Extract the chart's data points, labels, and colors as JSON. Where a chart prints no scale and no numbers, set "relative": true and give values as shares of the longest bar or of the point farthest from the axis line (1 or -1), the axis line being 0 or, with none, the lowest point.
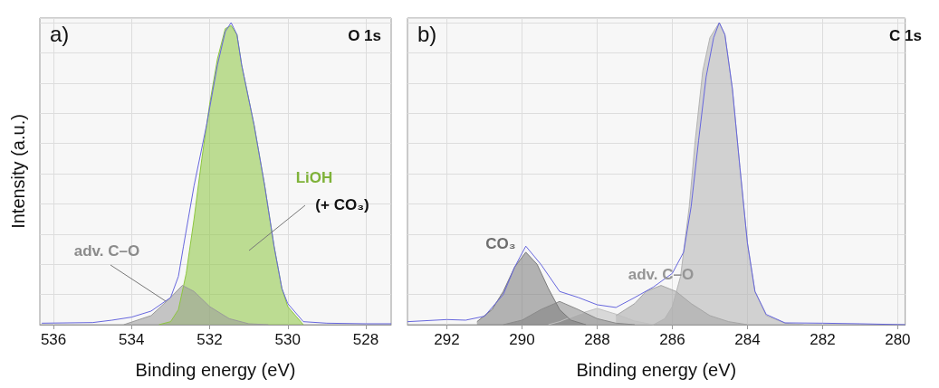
{
  "chart_data": [
    {
      "type": "area",
      "title": "a)",
      "subtitle": "O 1s",
      "xlabel": "Binding energy (eV)",
      "ylabel": "Intensity (a.u.)",
      "relative": true,
      "grid": true,
      "xlim": [
        536.35,
        527.35
      ],
      "xticks": [
        536,
        534,
        532,
        530,
        528
      ],
      "annotations": [
        "(+ CO₃)"
      ],
      "series": [
        {
          "name": "LiOH",
          "color": "#8dc63f",
          "x": [
            533.3,
            533,
            532.8,
            532.6,
            532.4,
            532.2,
            532,
            531.8,
            531.6,
            531.45,
            531.3,
            531.18,
            530.86,
            530.59,
            530.35,
            530.15,
            530,
            529.6
          ],
          "values": [
            0,
            0.01,
            0.05,
            0.17,
            0.35,
            0.55,
            0.73,
            0.88,
            0.98,
            0.99,
            0.96,
            0.86,
            0.66,
            0.46,
            0.26,
            0.12,
            0.06,
            0
          ]
        },
        {
          "name": "adv. C–O",
          "color": "#9a9a9a",
          "x": [
            534.2,
            533.5,
            533,
            532.7,
            532.4,
            532,
            531.5,
            531,
            530.5
          ],
          "values": [
            0,
            0.03,
            0.09,
            0.13,
            0.11,
            0.06,
            0.02,
            0.003,
            0
          ]
        },
        {
          "type": "line",
          "color": "#6666dd",
          "x": [
            536.3,
            535,
            534.5,
            534,
            533.5,
            533,
            532.8,
            532.67,
            532.4,
            532.08,
            531.8,
            531.6,
            531.45,
            531.3,
            531.18,
            530.86,
            530.59,
            530.35,
            530.15,
            530,
            529.6,
            529,
            528,
            527.35
          ],
          "values": [
            0.005,
            0.007,
            0.015,
            0.025,
            0.045,
            0.09,
            0.16,
            0.26,
            0.46,
            0.66,
            0.86,
            0.97,
            1,
            0.96,
            0.86,
            0.66,
            0.46,
            0.26,
            0.12,
            0.07,
            0.01,
            0.005,
            0.003,
            0.003
          ]
        }
      ]
    },
    {
      "type": "area",
      "title": "b)",
      "subtitle": "C 1s",
      "xlabel": "Binding energy (eV)",
      "relative": true,
      "grid": true,
      "xlim": [
        293.05,
        279.8
      ],
      "xticks": [
        292,
        290,
        288,
        286,
        284,
        282,
        280
      ],
      "series": [
        {
          "color": "#b3b3b3",
          "x": [
            286.5,
            286.2,
            286,
            285.78,
            285.55,
            285.39,
            285.19,
            285,
            284.75,
            284.6,
            284.4,
            284.2,
            284,
            283.8,
            283.5,
            283,
            282.5
          ],
          "values": [
            0,
            0.02,
            0.06,
            0.16,
            0.39,
            0.61,
            0.84,
            0.95,
            1,
            0.96,
            0.78,
            0.52,
            0.27,
            0.11,
            0.03,
            0.005,
            0
          ]
        },
        {
          "name": "adv. C–O",
          "color": "#a6a6a6",
          "x": [
            287.5,
            287,
            286.7,
            286.3,
            285.9,
            285.5,
            285,
            284.5,
            284
          ],
          "values": [
            0.03,
            0.07,
            0.11,
            0.13,
            0.11,
            0.07,
            0.03,
            0.01,
            0
          ]
        },
        {
          "color": "#c0c0c0",
          "x": [
            289.3,
            289,
            288.5,
            288,
            287.5,
            287,
            286.5
          ],
          "values": [
            0,
            0.01,
            0.035,
            0.054,
            0.035,
            0.012,
            0
          ]
        },
        {
          "color": "#8a8a8a",
          "x": [
            290.5,
            290,
            289.5,
            289,
            288.5,
            288,
            287.5,
            287
          ],
          "values": [
            0,
            0.015,
            0.05,
            0.077,
            0.05,
            0.02,
            0.005,
            0
          ]
        },
        {
          "name": "CO₃",
          "color": "#7a7a7a",
          "x": [
            291.2,
            290.8,
            290.5,
            290.2,
            289.9,
            289.6,
            289.3,
            289,
            288.7,
            288.3
          ],
          "values": [
            0.01,
            0.05,
            0.11,
            0.19,
            0.24,
            0.2,
            0.12,
            0.05,
            0.015,
            0
          ]
        },
        {
          "type": "line",
          "color": "#6666dd",
          "x": [
            293.05,
            292,
            291.5,
            291,
            290.5,
            290.2,
            289.9,
            289.5,
            289,
            288.5,
            288,
            287.5,
            287,
            286.5,
            286,
            285.7,
            285.5,
            285.3,
            285.1,
            284.9,
            284.75,
            284.6,
            284.4,
            284.2,
            284,
            283.8,
            283.5,
            283,
            282,
            281,
            279.8
          ],
          "values": [
            0.01,
            0.017,
            0.015,
            0.028,
            0.1,
            0.19,
            0.26,
            0.2,
            0.11,
            0.09,
            0.066,
            0.057,
            0.09,
            0.125,
            0.17,
            0.24,
            0.39,
            0.61,
            0.82,
            0.95,
            1,
            0.96,
            0.78,
            0.52,
            0.27,
            0.11,
            0.034,
            0.006,
            0.005,
            0.003,
            0
          ]
        }
      ]
    }
  ]
}
